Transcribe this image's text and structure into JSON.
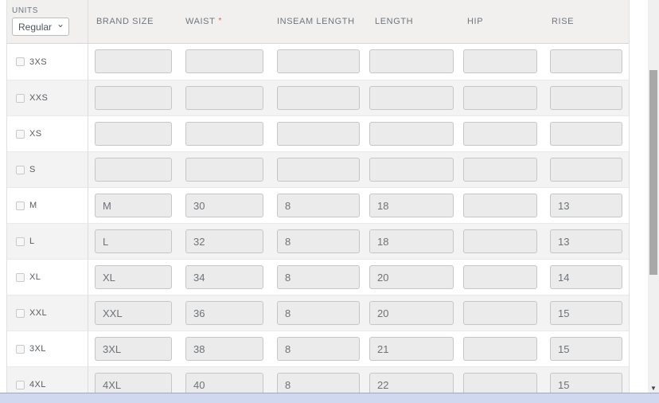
{
  "units": {
    "label": "UNITS",
    "selected": "Regular"
  },
  "required_marker": "*",
  "icons": {
    "chevron_down": "⌄",
    "scroll_down_arrow": "▼"
  },
  "columns": [
    {
      "key": "brand_size",
      "label": "BRAND SIZE",
      "required": false
    },
    {
      "key": "waist",
      "label": "WAIST",
      "required": true
    },
    {
      "key": "inseam_length",
      "label": "INSEAM LENGTH",
      "required": false
    },
    {
      "key": "length",
      "label": "LENGTH",
      "required": false
    },
    {
      "key": "hip",
      "label": "HIP",
      "required": false
    },
    {
      "key": "rise",
      "label": "RISE",
      "required": false
    }
  ],
  "rows": [
    {
      "size": "3XS",
      "checked": false,
      "values": {
        "brand_size": "",
        "waist": "",
        "inseam_length": "",
        "length": "",
        "hip": "",
        "rise": ""
      }
    },
    {
      "size": "XXS",
      "checked": false,
      "values": {
        "brand_size": "",
        "waist": "",
        "inseam_length": "",
        "length": "",
        "hip": "",
        "rise": ""
      }
    },
    {
      "size": "XS",
      "checked": false,
      "values": {
        "brand_size": "",
        "waist": "",
        "inseam_length": "",
        "length": "",
        "hip": "",
        "rise": ""
      }
    },
    {
      "size": "S",
      "checked": false,
      "values": {
        "brand_size": "",
        "waist": "",
        "inseam_length": "",
        "length": "",
        "hip": "",
        "rise": ""
      }
    },
    {
      "size": "M",
      "checked": false,
      "values": {
        "brand_size": "M",
        "waist": "30",
        "inseam_length": "8",
        "length": "18",
        "hip": "",
        "rise": "13"
      }
    },
    {
      "size": "L",
      "checked": false,
      "values": {
        "brand_size": "L",
        "waist": "32",
        "inseam_length": "8",
        "length": "18",
        "hip": "",
        "rise": "13"
      }
    },
    {
      "size": "XL",
      "checked": false,
      "values": {
        "brand_size": "XL",
        "waist": "34",
        "inseam_length": "8",
        "length": "20",
        "hip": "",
        "rise": "14"
      }
    },
    {
      "size": "XXL",
      "checked": false,
      "values": {
        "brand_size": "XXL",
        "waist": "36",
        "inseam_length": "8",
        "length": "20",
        "hip": "",
        "rise": "15"
      }
    },
    {
      "size": "3XL",
      "checked": false,
      "values": {
        "brand_size": "3XL",
        "waist": "38",
        "inseam_length": "8",
        "length": "21",
        "hip": "",
        "rise": "15"
      }
    },
    {
      "size": "4XL",
      "checked": false,
      "values": {
        "brand_size": "4XL",
        "waist": "40",
        "inseam_length": "8",
        "length": "22",
        "hip": "",
        "rise": "15"
      }
    }
  ],
  "colors": {
    "header_bg": "#f1f0ef",
    "header_text": "#6f767d",
    "row_alt_bg": "#f3f3f3",
    "row_border": "#e9e9e9",
    "label_text": "#565c62",
    "input_bg": "#ebebeb",
    "input_border": "#c6c6c6",
    "input_text": "#6d7378",
    "required": "#e0604e",
    "select_border": "#b9bcbf",
    "select_text": "#4f555b",
    "table_border": "#e0e0e0",
    "vscroll_track": "#f0f0f0",
    "vscroll_thumb": "#a8a8a8",
    "hscroll_bar": "#cfd8ef",
    "hscroll_edge": "#9fa8bf",
    "arrow": "#3f4550"
  }
}
